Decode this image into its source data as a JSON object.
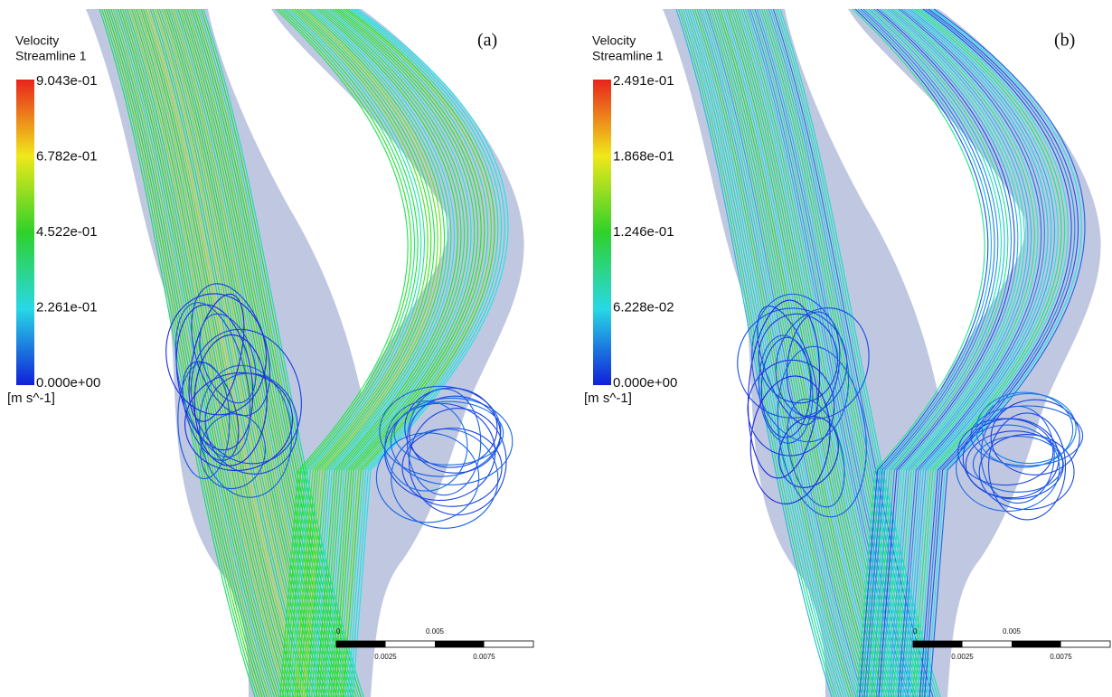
{
  "panels": [
    {
      "label": "(a)",
      "title": "Velocity",
      "subtitle": "Streamline 1",
      "colorbar_ticks": [
        "9.043e-01",
        "6.782e-01",
        "4.522e-01",
        "2.261e-01",
        "0.000e+00"
      ],
      "unit": "[m s^-1]",
      "scale_top": [
        "0",
        "0.005"
      ],
      "scale_bottom": [
        "0.0025",
        "0.0075"
      ]
    },
    {
      "label": "(b)",
      "title": "Velocity",
      "subtitle": "Streamline 1",
      "colorbar_ticks": [
        "2.491e-01",
        "1.868e-01",
        "1.246e-01",
        "6.228e-02",
        "0.000e+00"
      ],
      "unit": "[m s^-1]",
      "scale_top": [
        "0",
        "0.005"
      ],
      "scale_bottom": [
        "0.0025",
        "0.0075"
      ]
    }
  ]
}
